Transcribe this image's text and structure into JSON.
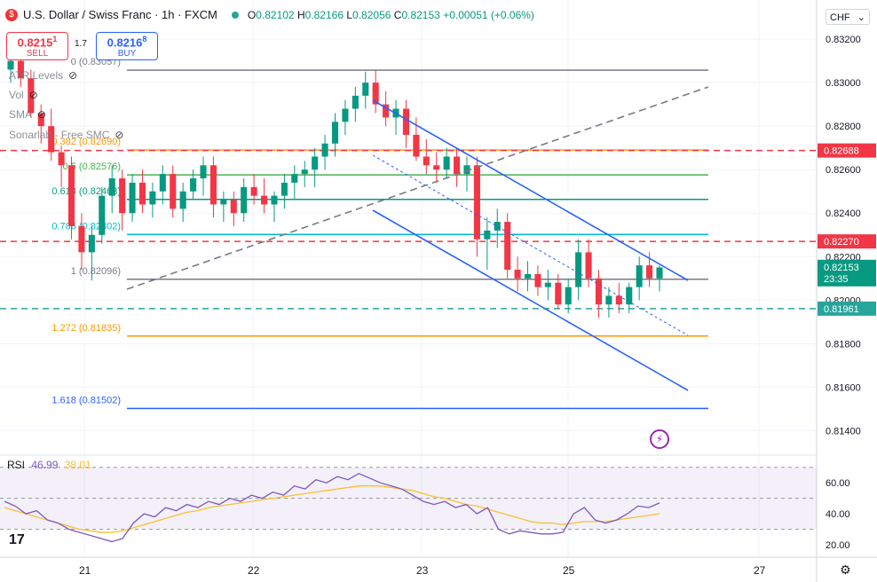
{
  "header": {
    "symbol": "U.S. Dollar / Swiss Franc · 1h · FXCM",
    "o_label": "O",
    "o": "0.82102",
    "h_label": "H",
    "h": "0.82166",
    "l_label": "L",
    "l": "0.82056",
    "c_label": "C",
    "c": "0.82153",
    "change": "+0.00051 (+0.06%)"
  },
  "trade": {
    "sell_price": "0.8215",
    "sell_price_sup": "1",
    "sell_label": "SELL",
    "spread": "1.7",
    "buy_price": "0.8216",
    "buy_price_sup": "8",
    "buy_label": "BUY"
  },
  "indicators": [
    "ATR Levels",
    "Vol",
    "SMA",
    "Sonarlab - Free SMC"
  ],
  "currency": "CHF",
  "rsi": {
    "label": "RSI",
    "value1": "46.99",
    "value2": "38.01"
  },
  "colors": {
    "up": "#089981",
    "down": "#f23645",
    "channel": "#2962ff",
    "fib_orange": "#ff9800",
    "fib_green": "#4caf50",
    "fib_teal": "#26a69a",
    "fib_gray": "#787b86",
    "rsi": "#7e57c2",
    "rsi_ma": "#fbc02d",
    "red_dash": "#f23645",
    "teal_dash": "#26a69a"
  },
  "chart_data": {
    "type": "candlestick",
    "timeframe": "1h",
    "x_ticks": [
      "21",
      "22",
      "23",
      "25",
      "27"
    ],
    "price_axis": {
      "ticks": [
        "0.83200",
        "0.83000",
        "0.82800",
        "0.82600",
        "0.82400",
        "0.82200",
        "0.82000",
        "0.81800",
        "0.81600",
        "0.81400"
      ],
      "range": [
        0.8132,
        0.8338
      ]
    },
    "price_labels": [
      {
        "text": "0.82688",
        "value": 0.82688,
        "color": "#f23645"
      },
      {
        "text": "0.82270",
        "value": 0.8227,
        "color": "#f23645"
      },
      {
        "text": "0.82153",
        "value": 0.82153,
        "color": "#089981",
        "sub": "23:35"
      },
      {
        "text": "0.81961",
        "value": 0.81961,
        "color": "#26a69a"
      }
    ],
    "fib_levels": [
      {
        "label": "0 (0.83057)",
        "value": 0.83057,
        "color": "#787b86"
      },
      {
        "label": "0.382 (0.82690)",
        "value": 0.8269,
        "color": "#ff9800"
      },
      {
        "label": "0.5 (0.82576)",
        "value": 0.82576,
        "color": "#4caf50"
      },
      {
        "label": "0.618 (0.82463)",
        "value": 0.82463,
        "color": "#089981"
      },
      {
        "label": "0.786 (0.82302)",
        "value": 0.82302,
        "color": "#00bcd4"
      },
      {
        "label": "1 (0.82096)",
        "value": 0.82096,
        "color": "#787b86"
      },
      {
        "label": "1.272 (0.81835)",
        "value": 0.81835,
        "color": "#ff9800"
      },
      {
        "label": "1.618 (0.81502)",
        "value": 0.81502,
        "color": "#2962ff"
      }
    ],
    "horizontal_dashed": [
      {
        "value": 0.82688,
        "color": "#f23645"
      },
      {
        "value": 0.8227,
        "color": "#f23645"
      },
      {
        "value": 0.81961,
        "color": "#26a69a"
      }
    ],
    "candles": [
      [
        0.8306,
        0.8312,
        0.83,
        0.831
      ],
      [
        0.831,
        0.8315,
        0.8298,
        0.8302
      ],
      [
        0.8302,
        0.8306,
        0.8284,
        0.8286
      ],
      [
        0.8286,
        0.829,
        0.8272,
        0.828
      ],
      [
        0.828,
        0.8288,
        0.8264,
        0.8268
      ],
      [
        0.8268,
        0.8271,
        0.8252,
        0.8262
      ],
      [
        0.8262,
        0.8266,
        0.8228,
        0.8234
      ],
      [
        0.8234,
        0.824,
        0.8214,
        0.8222
      ],
      [
        0.8222,
        0.8234,
        0.8209,
        0.823
      ],
      [
        0.823,
        0.8252,
        0.8226,
        0.8248
      ],
      [
        0.8248,
        0.8262,
        0.824,
        0.8256
      ],
      [
        0.8256,
        0.826,
        0.8232,
        0.824
      ],
      [
        0.824,
        0.8258,
        0.8236,
        0.8254
      ],
      [
        0.8254,
        0.826,
        0.824,
        0.8244
      ],
      [
        0.8244,
        0.8254,
        0.8238,
        0.825
      ],
      [
        0.825,
        0.8262,
        0.8244,
        0.8258
      ],
      [
        0.8258,
        0.8262,
        0.8238,
        0.8242
      ],
      [
        0.8242,
        0.8254,
        0.8236,
        0.825
      ],
      [
        0.825,
        0.826,
        0.8246,
        0.8256
      ],
      [
        0.8256,
        0.8266,
        0.8248,
        0.8262
      ],
      [
        0.8262,
        0.8266,
        0.8238,
        0.8244
      ],
      [
        0.8244,
        0.825,
        0.8236,
        0.8246
      ],
      [
        0.8246,
        0.825,
        0.8234,
        0.824
      ],
      [
        0.824,
        0.8256,
        0.8236,
        0.8252
      ],
      [
        0.8252,
        0.8258,
        0.8244,
        0.8248
      ],
      [
        0.8248,
        0.8256,
        0.824,
        0.8244
      ],
      [
        0.8244,
        0.825,
        0.8236,
        0.8248
      ],
      [
        0.8248,
        0.8258,
        0.8242,
        0.8254
      ],
      [
        0.8254,
        0.8262,
        0.8246,
        0.8258
      ],
      [
        0.8258,
        0.8264,
        0.8252,
        0.826
      ],
      [
        0.826,
        0.827,
        0.8252,
        0.8266
      ],
      [
        0.8266,
        0.8276,
        0.826,
        0.8272
      ],
      [
        0.8272,
        0.8286,
        0.8266,
        0.8282
      ],
      [
        0.8282,
        0.8292,
        0.8276,
        0.8288
      ],
      [
        0.8288,
        0.8298,
        0.8282,
        0.8294
      ],
      [
        0.8294,
        0.8305,
        0.8288,
        0.83
      ],
      [
        0.83,
        0.8306,
        0.8286,
        0.829
      ],
      [
        0.829,
        0.8296,
        0.828,
        0.8284
      ],
      [
        0.8284,
        0.8292,
        0.8276,
        0.8288
      ],
      [
        0.8288,
        0.8292,
        0.827,
        0.8276
      ],
      [
        0.8276,
        0.8284,
        0.8264,
        0.8266
      ],
      [
        0.8266,
        0.8274,
        0.8258,
        0.8262
      ],
      [
        0.8262,
        0.8268,
        0.8254,
        0.826
      ],
      [
        0.826,
        0.827,
        0.8256,
        0.8266
      ],
      [
        0.8266,
        0.827,
        0.8252,
        0.8258
      ],
      [
        0.8258,
        0.8266,
        0.825,
        0.8262
      ],
      [
        0.8262,
        0.8266,
        0.822,
        0.8228
      ],
      [
        0.8228,
        0.8238,
        0.8214,
        0.8232
      ],
      [
        0.8232,
        0.8242,
        0.8224,
        0.8236
      ],
      [
        0.8236,
        0.824,
        0.821,
        0.8214
      ],
      [
        0.8214,
        0.822,
        0.8204,
        0.821
      ],
      [
        0.821,
        0.8218,
        0.8204,
        0.8212
      ],
      [
        0.8212,
        0.8216,
        0.8202,
        0.8206
      ],
      [
        0.8206,
        0.8214,
        0.82,
        0.8208
      ],
      [
        0.8208,
        0.8212,
        0.8196,
        0.8198
      ],
      [
        0.8198,
        0.821,
        0.8194,
        0.8206
      ],
      [
        0.8206,
        0.8228,
        0.82,
        0.8222
      ],
      [
        0.8222,
        0.8228,
        0.8206,
        0.821
      ],
      [
        0.821,
        0.8214,
        0.8192,
        0.8198
      ],
      [
        0.8198,
        0.8206,
        0.8192,
        0.8202
      ],
      [
        0.8202,
        0.8208,
        0.8194,
        0.8198
      ],
      [
        0.8198,
        0.8208,
        0.8194,
        0.8206
      ],
      [
        0.8206,
        0.822,
        0.82,
        0.8216
      ],
      [
        0.8216,
        0.8222,
        0.8206,
        0.821
      ],
      [
        0.821,
        0.8216,
        0.8204,
        0.8215
      ]
    ]
  }
}
